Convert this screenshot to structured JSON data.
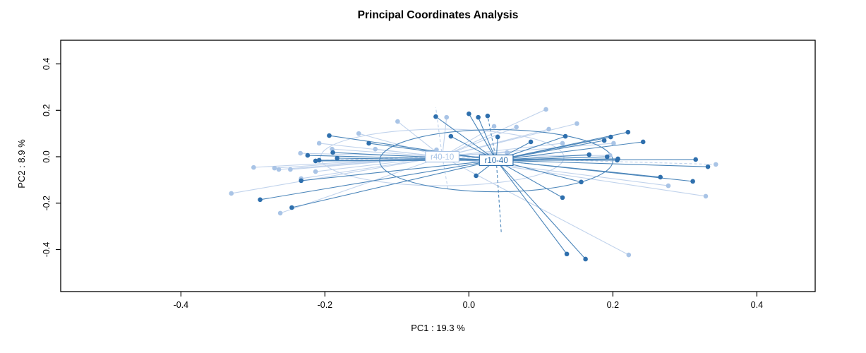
{
  "figure": {
    "title": "Principal Coordinates Analysis",
    "x_axis_label": "PC1 : 19.3 %",
    "y_axis_label": "PC2 : 8.9 %"
  },
  "colors": {
    "background": "#ffffff",
    "axis": "#000000",
    "dark_group_point": "#2e6fad",
    "dark_group_line": "#4c86ba",
    "light_group_point": "#a9c4e6",
    "light_group_line": "#c1d3ec"
  },
  "chart_data": {
    "type": "scatter",
    "title": "Principal Coordinates Analysis",
    "xlabel": "PC1 : 19.3 %",
    "ylabel": "PC2 : 8.9 %",
    "xlim": [
      -0.567,
      0.481
    ],
    "ylim": [
      -0.581,
      0.502
    ],
    "x_ticks": [
      -0.4,
      -0.2,
      0.0,
      0.2,
      0.4
    ],
    "y_ticks": [
      -0.4,
      -0.2,
      0.0,
      0.2,
      0.4
    ],
    "grid": false,
    "legend": "none",
    "plot_style": "spider-with-ellipses",
    "groups": [
      {
        "name": "r40-10",
        "point_color": "#a9c4e6",
        "line_color": "#c1d3ec",
        "centroid": [
          -0.037,
          0.0
        ],
        "ellipse": {
          "cx": -0.037,
          "cy": -0.003,
          "rx": 0.169,
          "ry": 0.122
        },
        "points": [
          [
            -0.153,
            0.1
          ],
          [
            -0.208,
            0.058
          ],
          [
            -0.13,
            0.033
          ],
          [
            -0.234,
            0.015
          ],
          [
            -0.299,
            -0.046
          ],
          [
            -0.27,
            -0.049
          ],
          [
            -0.264,
            -0.055
          ],
          [
            -0.248,
            -0.055
          ],
          [
            -0.213,
            -0.064
          ],
          [
            -0.233,
            -0.094
          ],
          [
            -0.33,
            -0.158
          ],
          [
            -0.262,
            -0.243
          ],
          [
            -0.099,
            0.152
          ],
          [
            -0.031,
            0.17
          ],
          [
            0.035,
            0.131
          ],
          [
            0.066,
            0.128
          ],
          [
            0.107,
            0.204
          ],
          [
            0.111,
            0.119
          ],
          [
            0.15,
            0.143
          ],
          [
            0.13,
            0.058
          ],
          [
            0.201,
            0.058
          ],
          [
            -0.045,
            0.03
          ],
          [
            0.053,
            0.018
          ],
          [
            0.196,
            0.006
          ],
          [
            0.277,
            -0.125
          ],
          [
            0.329,
            -0.17
          ],
          [
            0.222,
            -0.423
          ],
          [
            -0.19,
            0.033
          ]
        ],
        "dashed_points": [
          [
            0.343,
            -0.033
          ]
        ],
        "dashed_rays": [
          [
            -0.046,
            0.213
          ],
          [
            -0.029,
            -0.14
          ],
          [
            -0.205,
            -0.015
          ]
        ]
      },
      {
        "name": "r10-40",
        "point_color": "#2e6fad",
        "line_color": "#4c86ba",
        "centroid": [
          0.038,
          -0.015
        ],
        "ellipse": {
          "cx": 0.038,
          "cy": -0.017,
          "rx": 0.162,
          "ry": 0.134
        },
        "points": [
          [
            -0.194,
            0.091
          ],
          [
            -0.224,
            0.006
          ],
          [
            -0.189,
            0.018
          ],
          [
            -0.213,
            -0.018
          ],
          [
            -0.208,
            -0.015
          ],
          [
            -0.183,
            -0.006
          ],
          [
            -0.139,
            0.058
          ],
          [
            -0.233,
            -0.103
          ],
          [
            -0.29,
            -0.185
          ],
          [
            -0.246,
            -0.219
          ],
          [
            -0.046,
            0.173
          ],
          [
            0.0,
            0.185
          ],
          [
            0.013,
            0.17
          ],
          [
            -0.025,
            0.088
          ],
          [
            0.04,
            0.085
          ],
          [
            0.086,
            0.064
          ],
          [
            0.134,
            0.088
          ],
          [
            0.188,
            0.07
          ],
          [
            0.197,
            0.085
          ],
          [
            0.221,
            0.106
          ],
          [
            0.242,
            0.064
          ],
          [
            0.167,
            0.009
          ],
          [
            0.192,
            0.0
          ],
          [
            0.207,
            -0.009
          ],
          [
            0.315,
            -0.012
          ],
          [
            0.332,
            -0.043
          ],
          [
            0.266,
            -0.088
          ],
          [
            0.311,
            -0.106
          ],
          [
            0.206,
            -0.015
          ],
          [
            0.01,
            -0.082
          ],
          [
            0.156,
            -0.109
          ],
          [
            0.13,
            -0.176
          ],
          [
            0.136,
            -0.419
          ],
          [
            0.162,
            -0.441
          ]
        ],
        "dashed_points": [
          [
            0.026,
            0.176
          ]
        ],
        "dashed_rays": [
          [
            0.045,
            -0.328
          ]
        ]
      }
    ]
  }
}
